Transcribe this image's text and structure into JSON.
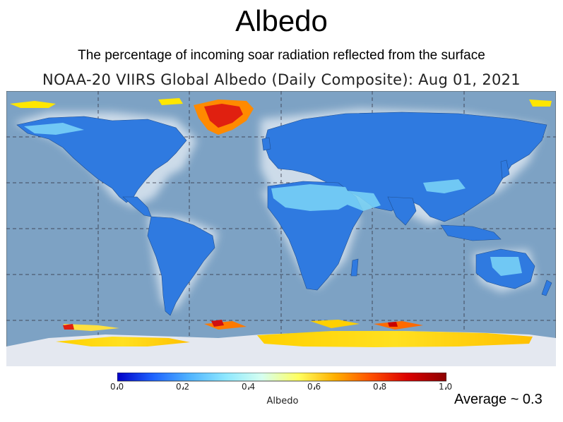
{
  "title": "Albedo",
  "subtitle": "The percentage of incoming soar radiation reflected from the surface",
  "map_title": "NOAA-20 VIIRS Global Albedo (Daily Composite): Aug 01, 2021",
  "colorbar": {
    "label": "Albedo",
    "ticks": [
      "0.0",
      "0.2",
      "0.4",
      "0.6",
      "0.8",
      "1.0"
    ],
    "colors": [
      "#0000c8",
      "#1e64ff",
      "#50b4ff",
      "#8ee8ff",
      "#d6fff0",
      "#ffff60",
      "#ffb000",
      "#ff5000",
      "#dc0000",
      "#8c0000"
    ]
  },
  "annotation": "Average ~ 0.3",
  "colors": {
    "ocean": "#7da2c4",
    "land_low": "#2f7ae0",
    "land_mid": "#58c0f0",
    "ice_high": "#ffe000",
    "ice_red": "#e02010"
  }
}
